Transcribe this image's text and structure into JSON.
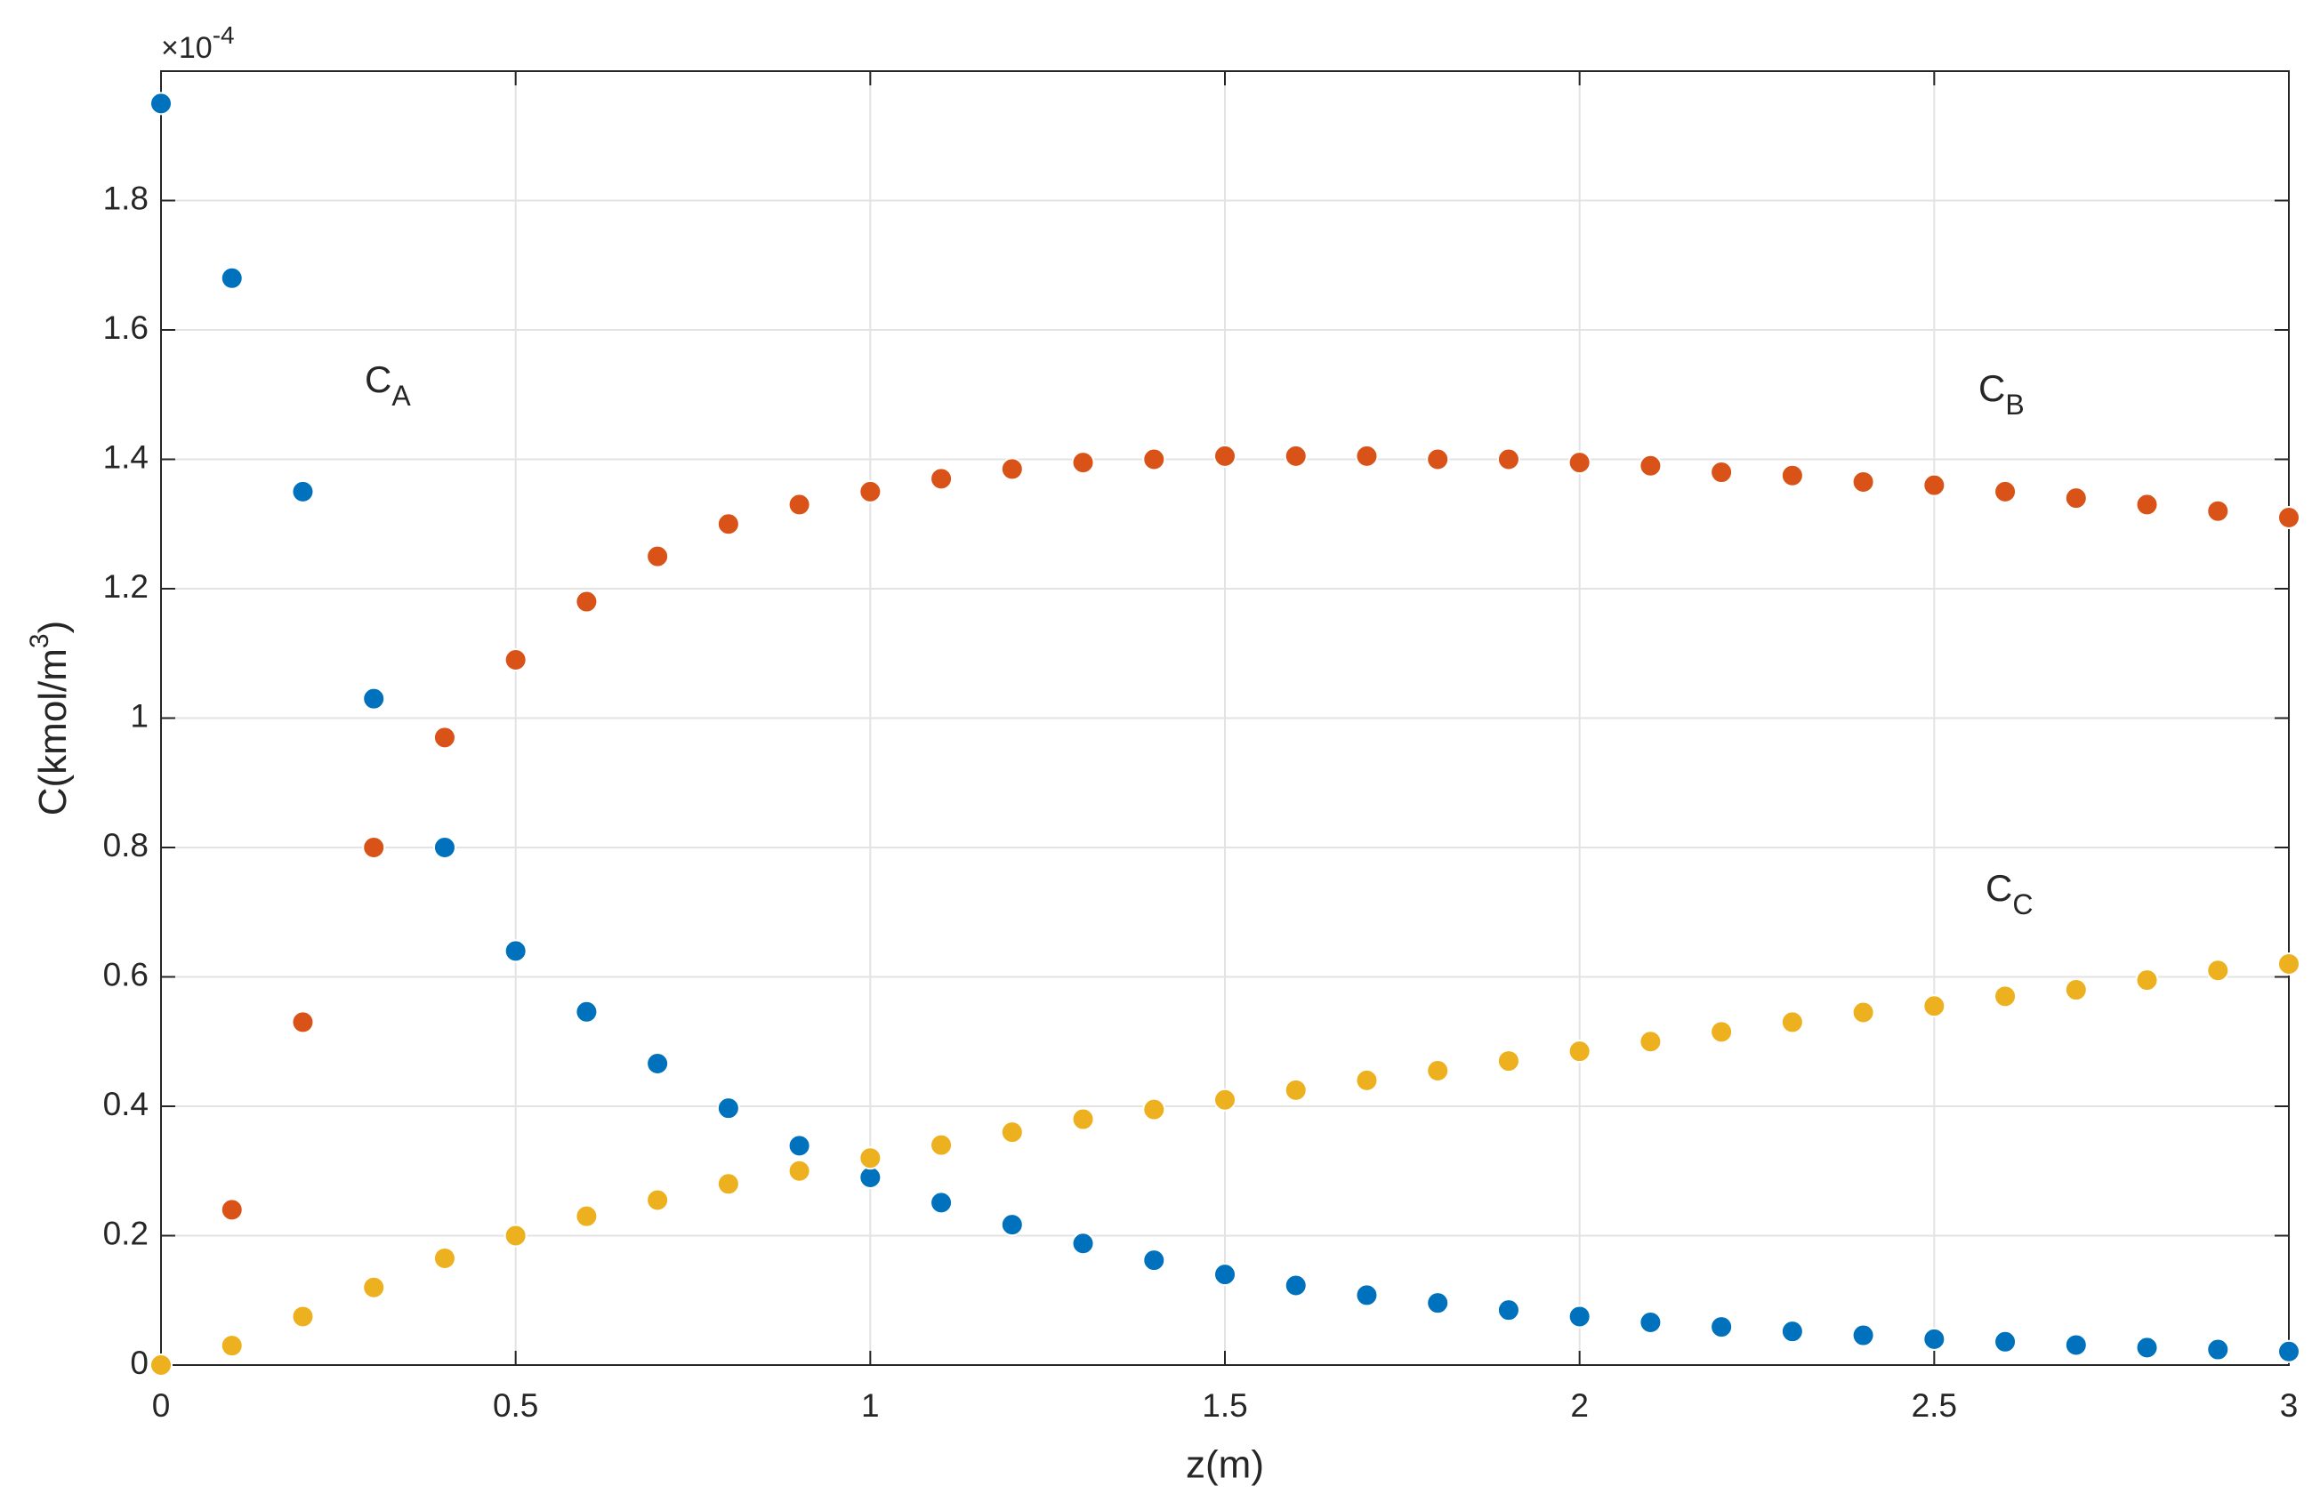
{
  "chart_data": {
    "type": "scatter",
    "x": [
      0,
      0.1,
      0.2,
      0.3,
      0.4,
      0.5,
      0.6,
      0.7,
      0.8,
      0.9,
      1.0,
      1.1,
      1.2,
      1.3,
      1.4,
      1.5,
      1.6,
      1.7,
      1.8,
      1.9,
      2.0,
      2.1,
      2.2,
      2.3,
      2.4,
      2.5,
      2.6,
      2.7,
      2.8,
      2.9,
      3.0
    ],
    "series": [
      {
        "name": "A",
        "color": "#0072BD",
        "values": [
          1.95,
          1.68,
          1.35,
          1.03,
          0.8,
          0.64,
          0.546,
          0.466,
          0.397,
          0.339,
          0.29,
          0.251,
          0.217,
          0.188,
          0.162,
          0.14,
          0.123,
          0.108,
          0.096,
          0.085,
          0.075,
          0.066,
          0.059,
          0.052,
          0.046,
          0.04,
          0.036,
          0.031,
          0.027,
          0.024,
          0.021
        ]
      },
      {
        "name": "B",
        "color": "#D95319",
        "values": [
          0,
          0.24,
          0.53,
          0.8,
          0.97,
          1.09,
          1.18,
          1.25,
          1.3,
          1.33,
          1.35,
          1.37,
          1.385,
          1.395,
          1.4,
          1.405,
          1.405,
          1.405,
          1.4,
          1.4,
          1.395,
          1.39,
          1.38,
          1.375,
          1.365,
          1.36,
          1.35,
          1.34,
          1.33,
          1.32,
          1.31
        ]
      },
      {
        "name": "C",
        "color": "#EDB120",
        "values": [
          0,
          0.03,
          0.075,
          0.12,
          0.165,
          0.2,
          0.23,
          0.255,
          0.28,
          0.3,
          0.32,
          0.34,
          0.36,
          0.38,
          0.395,
          0.41,
          0.425,
          0.44,
          0.455,
          0.47,
          0.485,
          0.5,
          0.515,
          0.53,
          0.545,
          0.555,
          0.57,
          0.58,
          0.595,
          0.61,
          0.62
        ]
      }
    ],
    "xlabel": "z(m)",
    "ylabel": {
      "text": "C(kmol/m",
      "sup": "3",
      "after": ")"
    },
    "y_multiplier": {
      "text": "×10",
      "exponent": "-4"
    },
    "annotations": [
      {
        "text": "C",
        "sub": "A"
      },
      {
        "text": "C",
        "sub": "B"
      },
      {
        "text": "C",
        "sub": "C"
      }
    ],
    "xlim": [
      0,
      3
    ],
    "xticks": [
      0,
      0.5,
      1,
      1.5,
      2,
      2.5,
      3
    ],
    "ylim": [
      0,
      2.0
    ],
    "yticks": [
      0,
      0.2,
      0.4,
      0.6,
      0.8,
      1,
      1.2,
      1.4,
      1.6,
      1.8
    ],
    "grid": true
  }
}
